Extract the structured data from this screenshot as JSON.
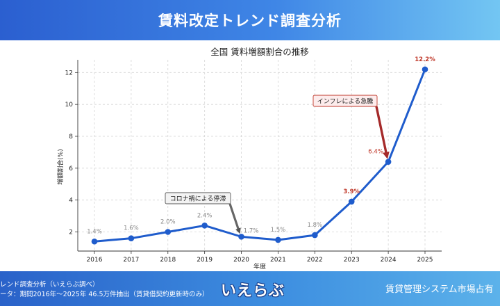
{
  "header": {
    "title": "賃料改定トレンド調査分析"
  },
  "chart_data": {
    "type": "line",
    "title": "全国 賃料増額割合の推移",
    "xlabel": "年度",
    "ylabel": "増額割合(%)",
    "x": [
      "2016",
      "2017",
      "2018",
      "2019",
      "2020",
      "2021",
      "2022",
      "2023",
      "2024",
      "2025"
    ],
    "values": [
      1.4,
      1.6,
      2.0,
      2.4,
      1.7,
      1.5,
      1.8,
      3.9,
      6.4,
      12.2
    ],
    "data_labels": [
      "1.4%",
      "1.6%",
      "2.0%",
      "2.4%",
      "1.7%",
      "1.5%",
      "1.8%",
      "3.9%",
      "6.4%",
      "12.2%"
    ],
    "highlighted_labels": [
      "3.9%",
      "6.4%",
      "12.2%"
    ],
    "ylim": [
      0.8,
      12.8
    ],
    "yticks": [
      "2",
      "4",
      "6",
      "8",
      "10",
      "12"
    ],
    "grid": true,
    "line_color": "#1f5ccc",
    "annotations": [
      {
        "text": "コロナ禍による停滞",
        "target_x": "2020"
      },
      {
        "text": "インフレによる急騰",
        "target_x": "2024"
      }
    ]
  },
  "footer": {
    "line1": "レンド調査分析（いえらぶ調べ）",
    "line2": "ータ：期間2016年〜2025年 46.5万件抽出（賃貸借契約更新時のみ）",
    "logo": "いえらぶ",
    "right": "賃貸管理システム市場占有"
  }
}
